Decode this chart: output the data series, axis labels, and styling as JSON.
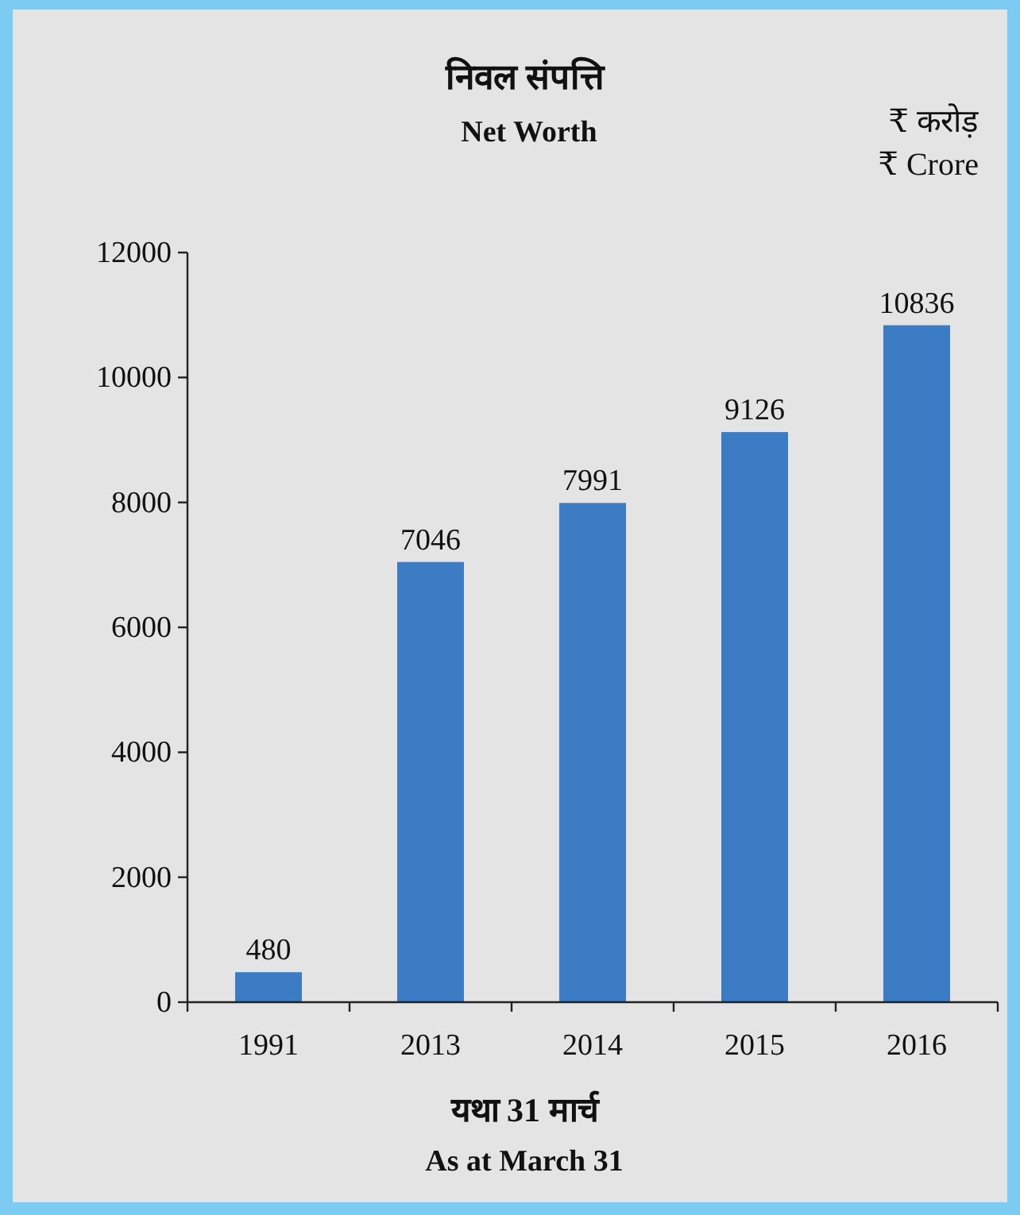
{
  "chart_data": {
    "type": "bar",
    "title": "निवल संपत्ति",
    "subtitle": "Net Worth",
    "xlabel": "यथा 31 मार्च",
    "annotations": [
      "₹ करोड़",
      "₹ Crore",
      "As at March 31"
    ],
    "categories": [
      "1991",
      "2013",
      "2014",
      "2015",
      "2016"
    ],
    "values": [
      480,
      7046,
      7991,
      9126,
      10836
    ],
    "color": "#3b7cc4",
    "ylim": [
      0,
      12000
    ],
    "yticks": [
      0,
      2000,
      4000,
      6000,
      8000,
      10000,
      12000
    ],
    "data_labels": true
  }
}
